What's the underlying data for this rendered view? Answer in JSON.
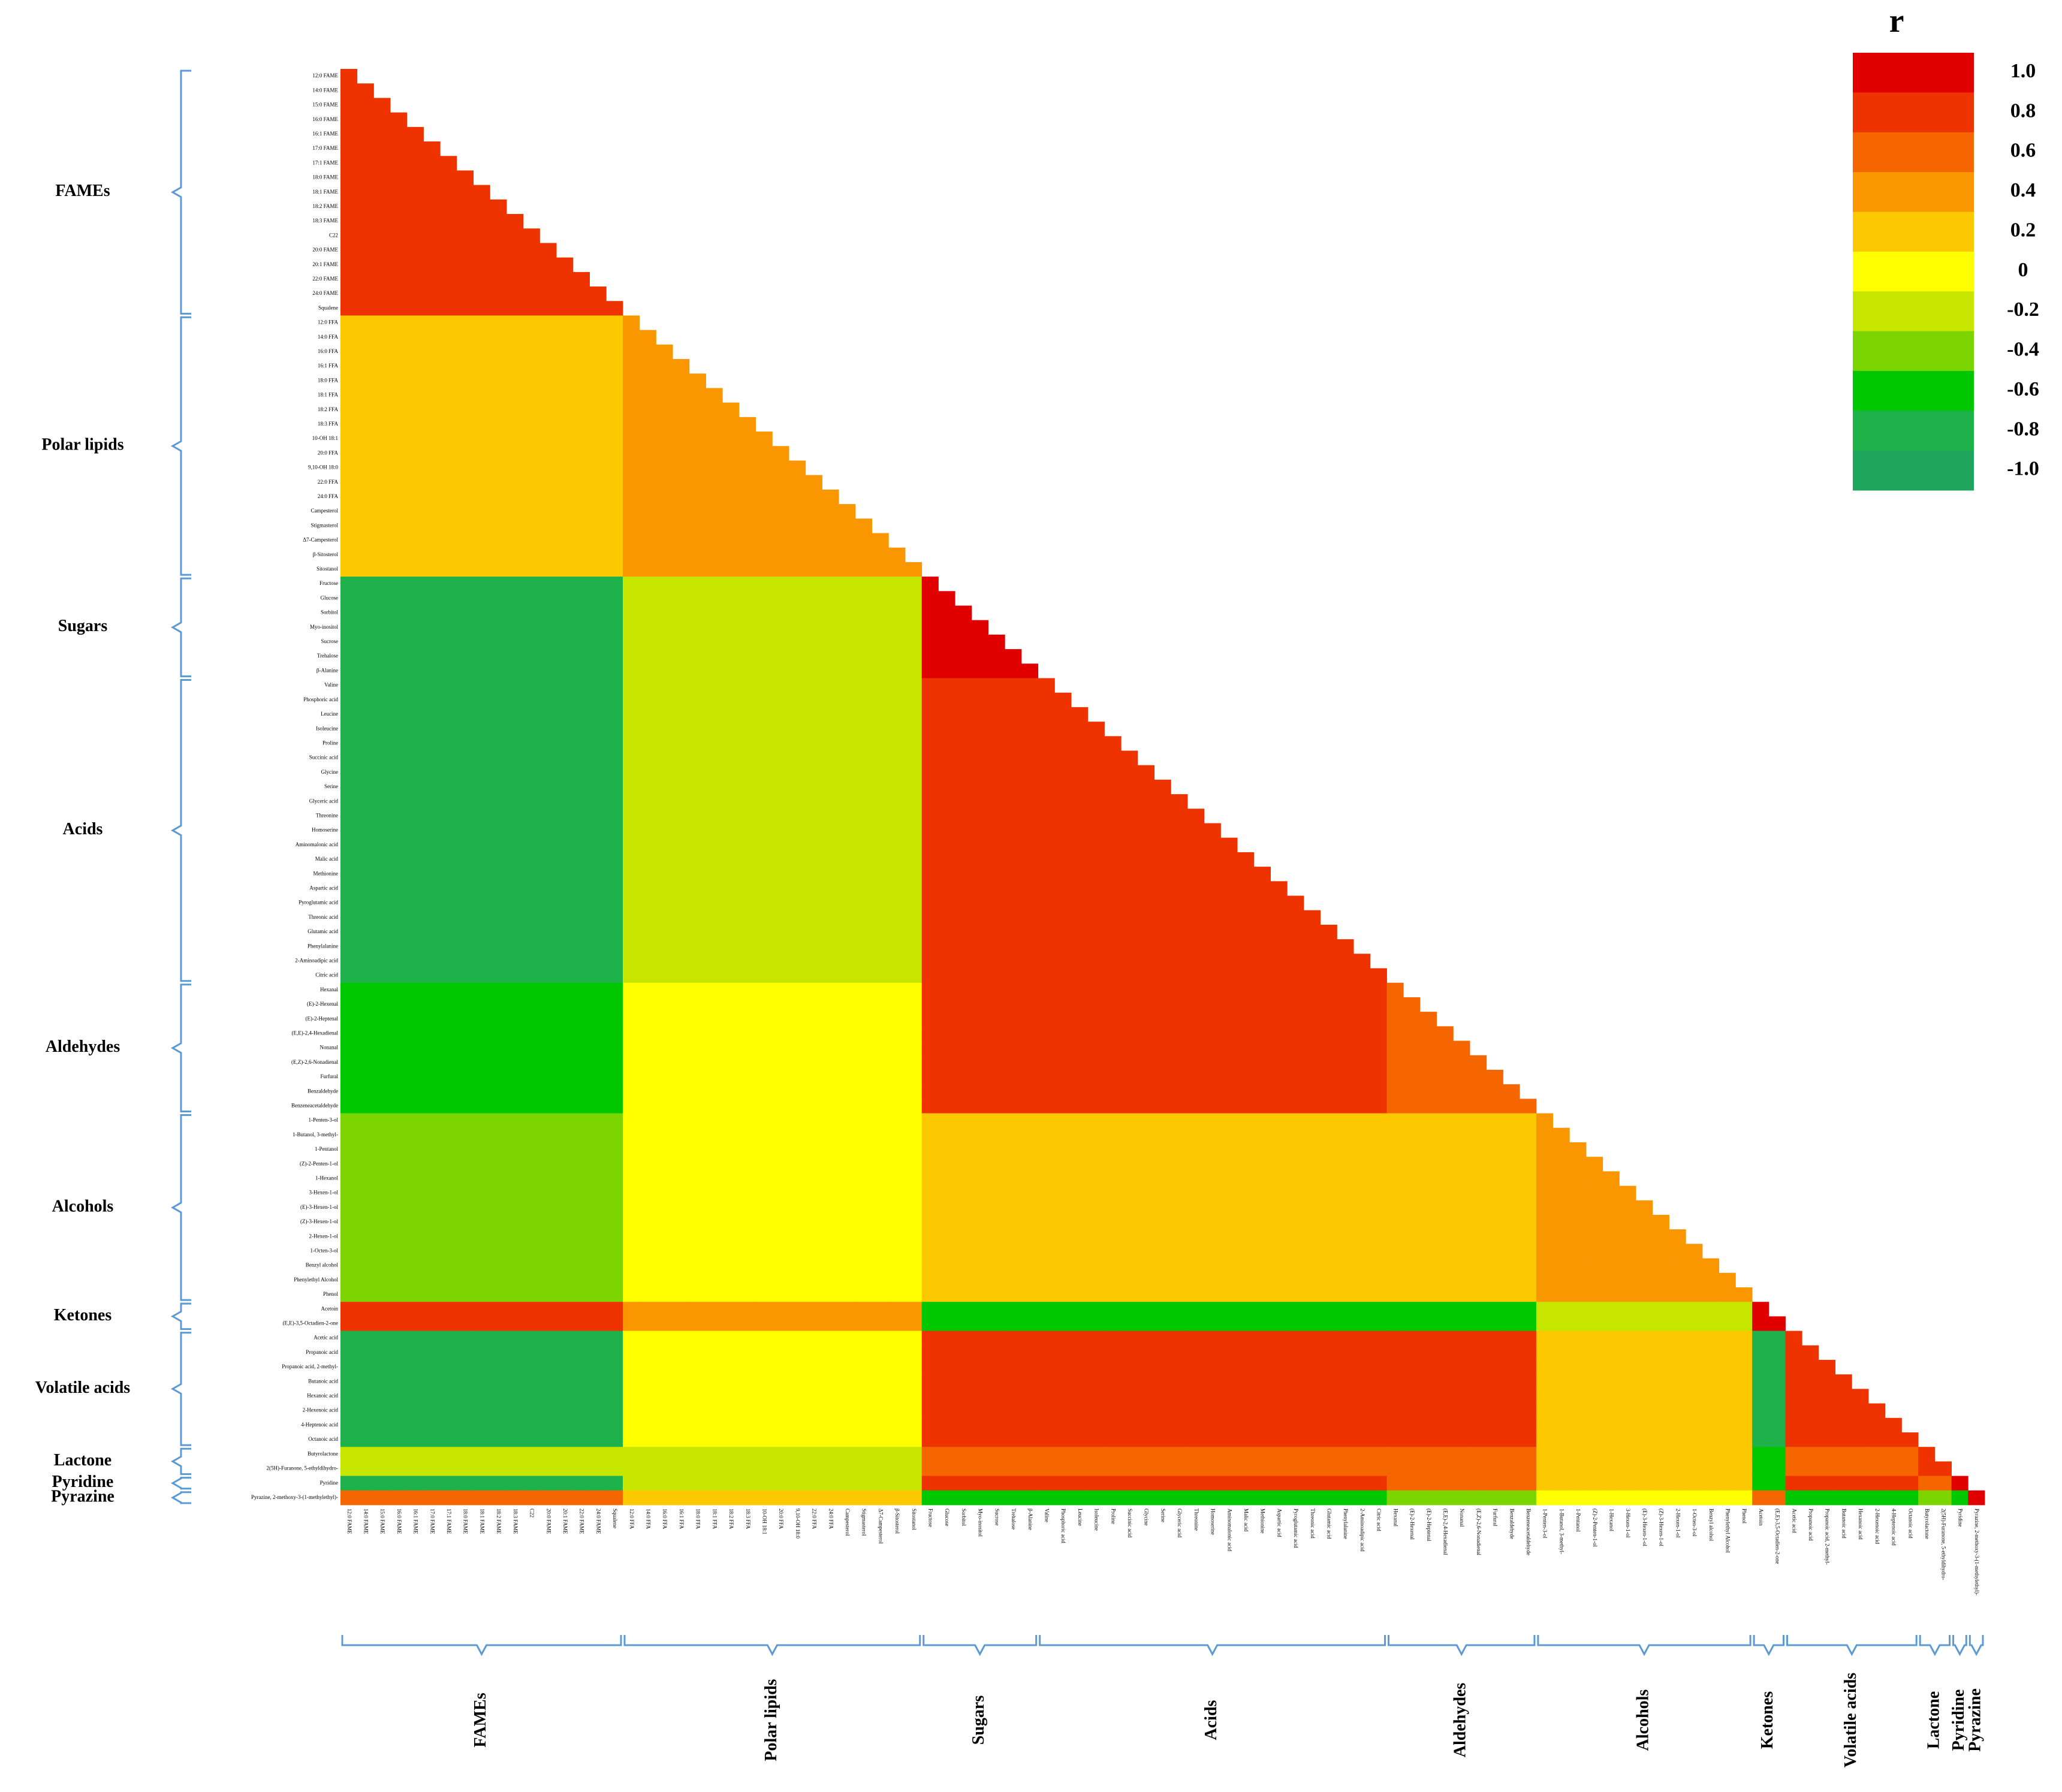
{
  "chart_data": {
    "type": "heatmap",
    "title": "r",
    "groups": [
      {
        "name": "FAMEs",
        "variables": [
          "12:0 FAME",
          "14:0 FAME",
          "15:0 FAME",
          "16:0 FAME",
          "16:1 FAME",
          "17:0 FAME",
          "17:1 FAME",
          "18:0 FAME",
          "18:1 FAME",
          "18:2 FAME",
          "18:3 FAME",
          "C22",
          "20:0 FAME",
          "20:1 FAME",
          "22:0 FAME",
          "24:0 FAME",
          "Squalene"
        ]
      },
      {
        "name": "Polar lipids",
        "variables": [
          "12:0 FFA",
          "14:0 FFA",
          "16:0 FFA",
          "16:1 FFA",
          "18:0 FFA",
          "18:1 FFA",
          "18:2 FFA",
          "18:3 FFA",
          "10-OH 18:1",
          "20:0 FFA",
          "9,10-OH 18:0",
          "22:0 FFA",
          "24:0 FFA",
          "Campesterol",
          "Stigmasterol",
          "Δ7-Campesterol",
          "β-Sitosterol",
          "Sitostanol"
        ]
      },
      {
        "name": "Sugars",
        "variables": [
          "Fructose",
          "Glucose",
          "Sorbitol",
          "Myo-inositol",
          "Sucrose",
          "Trehalose",
          "β-Alanine"
        ]
      },
      {
        "name": "Acids",
        "variables": [
          "Valine",
          "Phosphoric acid",
          "Leucine",
          "Isoleucine",
          "Proline",
          "Succinic acid",
          "Glycine",
          "Serine",
          "Glyceric acid",
          "Threonine",
          "Homoserine",
          "Aminomalonic acid",
          "Malic acid",
          "Methionine",
          "Aspartic acid",
          "Pyroglutamic acid",
          "Threonic acid",
          "Glutamic acid",
          "Phenylalanine",
          "2-Aminoadipic acid",
          "Citric acid"
        ]
      },
      {
        "name": "Aldehydes",
        "variables": [
          "Hexanal",
          "(E)-2-Hexenal",
          "(E)-2-Heptenal",
          "(E,E)-2,4-Hexadienal",
          "Nonanal",
          "(E,Z)-2,6-Nonadienal",
          "Furfural",
          "Benzaldehyde",
          "Benzeneacetaldehyde"
        ]
      },
      {
        "name": "Alcohols",
        "variables": [
          "1-Penten-3-ol",
          "1-Butanol, 3-methyl-",
          "1-Pentanol",
          "(Z)-2-Penten-1-ol",
          "1-Hexanol",
          "3-Hexen-1-ol",
          "(E)-3-Hexen-1-ol",
          "(Z)-3-Hexen-1-ol",
          "2-Hexen-1-ol",
          "1-Octen-3-ol",
          "Benzyl alcohol",
          "Phenylethyl Alcohol",
          "Phenol"
        ]
      },
      {
        "name": "Ketones",
        "variables": [
          "Acetoin",
          "(E,E)-3,5-Octadien-2-one"
        ]
      },
      {
        "name": "Volatile acids",
        "variables": [
          "Acetic acid",
          "Propanoic acid",
          "Propanoic acid, 2-methyl-",
          "Butanoic acid",
          "Hexanoic acid",
          "2-Hexenoic acid",
          "4-Heptenoic acid",
          "Octanoic acid"
        ]
      },
      {
        "name": "Lactone",
        "variables": [
          "Butyrolactone",
          "2(5H)-Furanone, 5-ethyldihydro-"
        ]
      },
      {
        "name": "Pyridine",
        "variables": [
          "Pyridine"
        ]
      },
      {
        "name": "Pyrazine",
        "variables": [
          "Pyrazine, 2-methoxy-3-(1-methylethyl)-"
        ]
      }
    ],
    "values": [
      [
        0.8
      ],
      [
        0.2,
        0.4
      ],
      [
        -0.8,
        -0.2,
        1
      ],
      [
        -0.8,
        -0.2,
        0.8,
        0.8
      ],
      [
        -0.6,
        0,
        0.8,
        0.8,
        0.6
      ],
      [
        -0.4,
        0,
        0.2,
        0.2,
        0.2,
        0.4
      ],
      [
        0.8,
        0.4,
        -0.6,
        -0.6,
        -0.6,
        -0.2,
        1
      ],
      [
        -0.8,
        0,
        0.8,
        0.8,
        0.8,
        0.2,
        -0.8,
        0.8
      ],
      [
        -0.2,
        -0.2,
        0.6,
        0.6,
        0.6,
        0.2,
        -0.6,
        0.6,
        0.8
      ],
      [
        -0.8,
        -0.2,
        0.8,
        0.8,
        0.6,
        0.2,
        -0.6,
        0.8,
        0.6,
        1
      ],
      [
        0.6,
        0.2,
        -0.6,
        -0.6,
        -0.4,
        0,
        0.6,
        -0.6,
        -0.4,
        -0.6,
        1
      ]
    ],
    "colorbar": {
      "ticks": [
        {
          "value": 1,
          "label": "1.0"
        },
        0.8,
        0.6,
        0.4,
        0.2,
        0,
        -0.2,
        -0.4,
        -0.6,
        -0.8,
        {
          "value": -1,
          "label": "-1.0"
        }
      ],
      "colors": [
        "#e00000",
        "#ee3300",
        "#f66600",
        "#fa9600",
        "#fcc800",
        "#ffff00",
        "#c6e600",
        "#7cd400",
        "#00c800",
        "#20b24a",
        "#1ea65c"
      ]
    }
  }
}
